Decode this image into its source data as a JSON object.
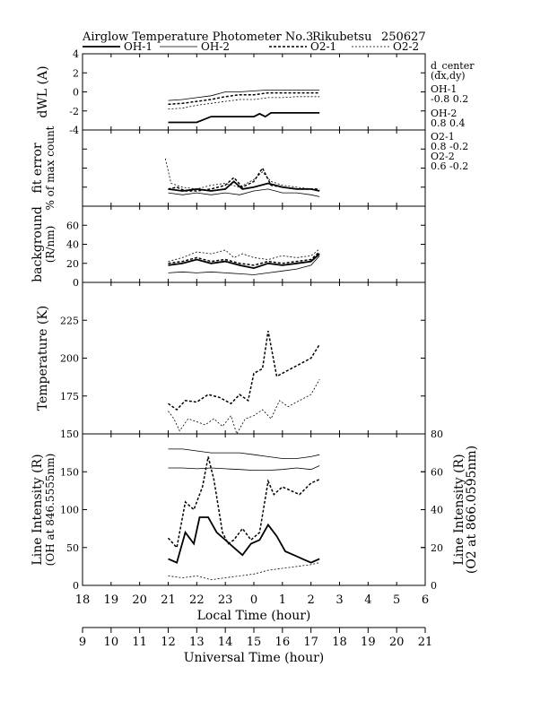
{
  "header": {
    "title": "Airglow Temperature Photometer No.3",
    "station": "Rikubetsu",
    "date_code": "250627"
  },
  "legend": {
    "items": [
      {
        "label": "OH-1",
        "style": "thick-solid"
      },
      {
        "label": "OH-2",
        "style": "thin-solid"
      },
      {
        "label": "O2-1",
        "style": "thick-dashed"
      },
      {
        "label": "O2-2",
        "style": "thin-dashed"
      }
    ]
  },
  "side_info": {
    "title_line1": "d_center",
    "title_line2": "(dx,dy)",
    "entries": [
      {
        "name": "OH-1",
        "values": "-0.8  0.2"
      },
      {
        "name": "OH-2",
        "values": "0.8   0.4"
      },
      {
        "name": "O2-1",
        "values": "0.8   -0.2"
      },
      {
        "name": "O2-2",
        "values": "0.6   -0.2"
      }
    ]
  },
  "chart_data": [
    {
      "type": "line",
      "panel": "dwl",
      "ylabel_lines": [
        "dWL (A)"
      ],
      "ylim": [
        -4,
        4
      ],
      "yticks": [
        -4,
        -2,
        0,
        2,
        4
      ],
      "x_unit": "Local Time (hour)",
      "series": [
        {
          "name": "OH-1",
          "style": "thick-solid",
          "x": [
            21.0,
            22.0,
            22.5,
            23.0,
            23.5,
            24.0,
            24.2,
            24.4,
            24.6,
            25.0,
            26.0,
            26.3
          ],
          "y": [
            -3.2,
            -3.2,
            -2.6,
            -2.6,
            -2.6,
            -2.6,
            -2.3,
            -2.6,
            -2.2,
            -2.2,
            -2.2,
            -2.2
          ]
        },
        {
          "name": "OH-2",
          "style": "thin-solid",
          "x": [
            21.0,
            21.5,
            22.0,
            22.5,
            23.0,
            23.5,
            24.0,
            24.5,
            25.0,
            25.5,
            26.0,
            26.3
          ],
          "y": [
            -0.9,
            -0.8,
            -0.6,
            -0.4,
            0.0,
            0.0,
            0.1,
            0.2,
            0.2,
            0.2,
            0.2,
            0.2
          ]
        },
        {
          "name": "O2-1",
          "style": "thick-dashed",
          "x": [
            21.0,
            21.5,
            22.0,
            22.5,
            23.0,
            23.5,
            24.0,
            24.5,
            25.0,
            25.5,
            26.0,
            26.3
          ],
          "y": [
            -1.3,
            -1.2,
            -1.0,
            -0.8,
            -0.5,
            -0.3,
            -0.3,
            -0.1,
            -0.1,
            -0.1,
            -0.1,
            -0.1
          ]
        },
        {
          "name": "O2-2",
          "style": "thin-dashed",
          "x": [
            21.0,
            21.5,
            22.0,
            22.5,
            23.0,
            23.5,
            24.0,
            24.5,
            25.0,
            25.5,
            26.0,
            26.3
          ],
          "y": [
            -1.8,
            -1.7,
            -1.4,
            -1.2,
            -1.0,
            -0.8,
            -0.8,
            -0.6,
            -0.6,
            -0.5,
            -0.5,
            -0.5
          ]
        }
      ]
    },
    {
      "type": "line",
      "panel": "fit_error",
      "ylabel_lines": [
        "fit error",
        "% of max count"
      ],
      "ylim": [
        0,
        4
      ],
      "yticks": [
        0,
        1,
        2,
        3,
        4
      ],
      "ytick_labels_shown": false,
      "series": [
        {
          "name": "OH-1",
          "style": "thick-solid",
          "x": [
            21.0,
            21.5,
            22.0,
            22.5,
            23.0,
            23.3,
            23.6,
            24.0,
            24.5,
            25.0,
            25.5,
            26.0,
            26.3
          ],
          "y": [
            0.9,
            0.8,
            0.9,
            0.8,
            0.9,
            1.3,
            0.9,
            1.0,
            1.2,
            1.0,
            0.9,
            0.9,
            0.8
          ]
        },
        {
          "name": "OH-2",
          "style": "thin-solid",
          "x": [
            21.0,
            21.5,
            22.0,
            22.5,
            23.0,
            23.5,
            24.0,
            24.5,
            25.0,
            25.5,
            26.0,
            26.3
          ],
          "y": [
            0.7,
            0.6,
            0.7,
            0.6,
            0.7,
            0.6,
            0.8,
            0.9,
            0.7,
            0.7,
            0.6,
            0.5
          ]
        },
        {
          "name": "O2-1",
          "style": "thick-dashed",
          "x": [
            21.0,
            21.3,
            21.6,
            22.0,
            22.5,
            23.0,
            23.3,
            23.6,
            24.0,
            24.3,
            24.6,
            25.0,
            25.5,
            26.0,
            26.3
          ],
          "y": [
            0.9,
            1.0,
            0.8,
            0.8,
            0.9,
            1.1,
            1.5,
            1.0,
            1.3,
            2.0,
            1.1,
            1.0,
            0.9,
            0.9,
            0.9
          ]
        },
        {
          "name": "O2-2",
          "style": "thin-dashed",
          "x": [
            20.9,
            21.1,
            21.5,
            22.0,
            22.5,
            23.0,
            23.5,
            24.0,
            24.3,
            24.6,
            25.0,
            25.5,
            26.0,
            26.3
          ],
          "y": [
            2.5,
            1.2,
            1.0,
            0.9,
            1.1,
            1.2,
            1.0,
            1.4,
            1.8,
            1.3,
            1.1,
            1.0,
            0.9,
            0.8
          ]
        }
      ]
    },
    {
      "type": "line",
      "panel": "background",
      "ylabel_lines": [
        "background",
        "(R/nm)"
      ],
      "ylim": [
        0,
        80
      ],
      "yticks": [
        0,
        20,
        40,
        60
      ],
      "series": [
        {
          "name": "OH-1",
          "style": "thick-solid",
          "x": [
            21.0,
            21.5,
            22.0,
            22.5,
            23.0,
            23.5,
            24.0,
            24.5,
            25.0,
            25.5,
            26.0,
            26.3
          ],
          "y": [
            18,
            20,
            24,
            20,
            22,
            18,
            15,
            20,
            18,
            20,
            22,
            30
          ]
        },
        {
          "name": "OH-2",
          "style": "thin-solid",
          "x": [
            21.0,
            21.5,
            22.0,
            22.5,
            23.0,
            23.5,
            24.0,
            24.5,
            25.0,
            25.5,
            26.0,
            26.3
          ],
          "y": [
            10,
            11,
            10,
            11,
            10,
            9,
            8,
            10,
            12,
            14,
            18,
            28
          ]
        },
        {
          "name": "O2-1",
          "style": "thick-dashed",
          "x": [
            21.0,
            21.5,
            22.0,
            22.5,
            23.0,
            23.5,
            24.0,
            24.5,
            25.0,
            25.5,
            26.0,
            26.3
          ],
          "y": [
            20,
            22,
            26,
            22,
            24,
            20,
            18,
            22,
            20,
            22,
            24,
            32
          ]
        },
        {
          "name": "O2-2",
          "style": "thin-dashed",
          "x": [
            21.0,
            21.5,
            22.0,
            22.5,
            23.0,
            23.3,
            23.6,
            24.0,
            24.5,
            25.0,
            25.5,
            26.0,
            26.3
          ],
          "y": [
            22,
            26,
            32,
            30,
            34,
            26,
            30,
            26,
            24,
            28,
            26,
            28,
            35
          ]
        }
      ]
    },
    {
      "type": "line",
      "panel": "temperature",
      "ylabel_lines": [
        "Temperature (K)"
      ],
      "ylim": [
        150,
        250
      ],
      "yticks": [
        150,
        175,
        200,
        225
      ],
      "series": [
        {
          "name": "O2-1",
          "style": "thick-dashed",
          "x": [
            21.0,
            21.3,
            21.6,
            22.0,
            22.4,
            22.8,
            23.2,
            23.5,
            23.8,
            24.0,
            24.3,
            24.5,
            24.8,
            25.2,
            25.6,
            26.0,
            26.3
          ],
          "y": [
            170,
            166,
            172,
            171,
            176,
            174,
            170,
            176,
            172,
            190,
            193,
            218,
            188,
            192,
            196,
            200,
            209
          ]
        },
        {
          "name": "O2-2",
          "style": "thin-dashed",
          "x": [
            21.0,
            21.2,
            21.4,
            21.7,
            22.0,
            22.3,
            22.6,
            22.9,
            23.2,
            23.4,
            23.7,
            24.0,
            24.3,
            24.6,
            24.9,
            25.2,
            25.6,
            26.0,
            26.3
          ],
          "y": [
            165,
            160,
            152,
            160,
            158,
            156,
            160,
            155,
            162,
            150,
            160,
            162,
            166,
            160,
            172,
            168,
            172,
            176,
            186
          ]
        }
      ]
    },
    {
      "type": "line",
      "panel": "line_intensity",
      "ylabel_left_lines": [
        "Line Intensity (R)",
        "(OH at 846.5555nm)"
      ],
      "ylabel_right_lines": [
        "Line Intensity (R)",
        "(O2 at 866.0595nm)"
      ],
      "ylim_left": [
        0,
        200
      ],
      "yticks_left": [
        0,
        50,
        100,
        150
      ],
      "ylim_right": [
        0,
        80
      ],
      "yticks_right": [
        0,
        20,
        40,
        60,
        80
      ],
      "xlim": [
        18,
        30
      ],
      "xticks": [
        18,
        19,
        20,
        21,
        22,
        23,
        24,
        25,
        26,
        27,
        28,
        29,
        30
      ],
      "xtick_labels_lt": [
        "18",
        "19",
        "20",
        "21",
        "22",
        "23",
        "0",
        "1",
        "2",
        "3",
        "4",
        "5",
        "6"
      ],
      "xlabel_lt": "Local Time (hour)",
      "xtick_labels_ut": [
        "9",
        "10",
        "11",
        "12",
        "13",
        "14",
        "15",
        "16",
        "17",
        "18",
        "19",
        "20",
        "21"
      ],
      "xlabel_ut": "Universal Time (hour)",
      "series": [
        {
          "name": "OH-1",
          "style": "thick-solid",
          "axis": "left",
          "x": [
            21.0,
            21.3,
            21.6,
            21.9,
            22.1,
            22.4,
            22.7,
            23.0,
            23.3,
            23.6,
            23.9,
            24.2,
            24.5,
            24.8,
            25.1,
            25.4,
            25.7,
            26.0,
            26.3
          ],
          "y": [
            35,
            30,
            70,
            55,
            90,
            90,
            70,
            60,
            50,
            40,
            55,
            60,
            80,
            65,
            45,
            40,
            35,
            30,
            35
          ]
        },
        {
          "name": "OH-2",
          "style": "thin-solid",
          "axis": "left",
          "x": [
            21.0,
            21.5,
            22.0,
            22.5,
            23.0,
            23.5,
            24.0,
            24.5,
            25.0,
            25.5,
            26.0,
            26.3
          ],
          "y": [
            155,
            155,
            154,
            155,
            154,
            153,
            152,
            152,
            153,
            155,
            153,
            158
          ]
        },
        {
          "name": "O2-1",
          "style": "thick-dashed",
          "axis": "right",
          "x": [
            21.0,
            21.3,
            21.6,
            21.9,
            22.2,
            22.4,
            22.6,
            22.9,
            23.1,
            23.3,
            23.6,
            23.9,
            24.2,
            24.5,
            24.7,
            25.0,
            25.3,
            25.6,
            26.0,
            26.3
          ],
          "y": [
            25,
            20,
            44,
            40,
            52,
            68,
            56,
            28,
            22,
            24,
            30,
            24,
            28,
            55,
            48,
            52,
            50,
            48,
            54,
            56
          ]
        },
        {
          "name": "O2-2",
          "style": "thin-dashed",
          "axis": "right",
          "x": [
            21.0,
            21.5,
            22.0,
            22.5,
            23.0,
            23.5,
            24.0,
            24.5,
            25.0,
            25.5,
            26.0,
            26.3
          ],
          "y": [
            5,
            4,
            5,
            3,
            4,
            5,
            6,
            8,
            9,
            10,
            11,
            12
          ]
        },
        {
          "name": "O2-2",
          "style": "thin-solid",
          "axis": "right",
          "x": [
            21.0,
            21.5,
            22.0,
            22.5,
            23.0,
            23.5,
            24.0,
            24.5,
            25.0,
            25.5,
            26.0,
            26.3
          ],
          "y": [
            72,
            72,
            71,
            70,
            70,
            70,
            69,
            68,
            67,
            67,
            68,
            69
          ]
        }
      ]
    }
  ]
}
